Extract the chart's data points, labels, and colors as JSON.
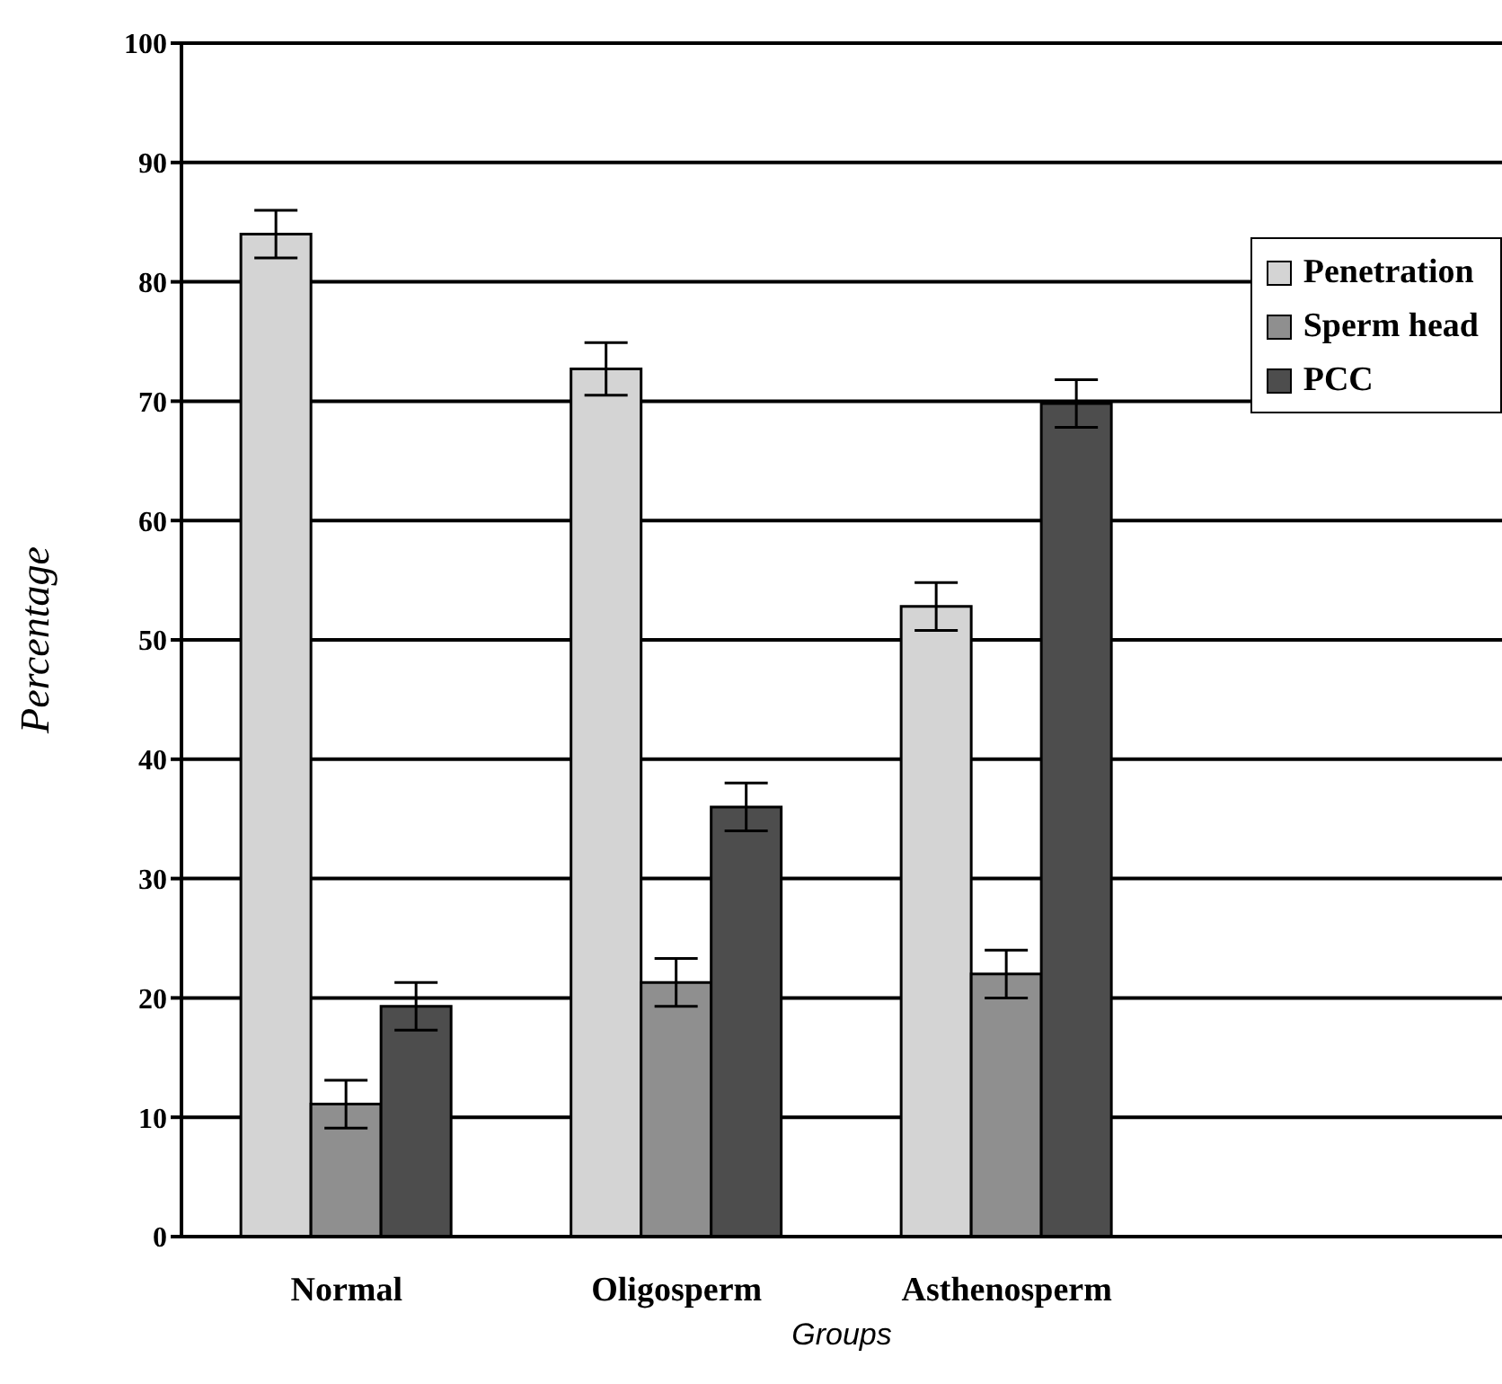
{
  "chart_data": {
    "type": "bar",
    "xlabel": "Groups",
    "ylabel": "Percentage",
    "categories": [
      "Normal",
      "Oligosperm",
      "Asthenosperm",
      null
    ],
    "series": [
      {
        "name": "Penetration",
        "color": "#d4d4d4",
        "values": [
          84,
          72.7,
          52.8,
          null
        ],
        "errors": [
          2,
          2.2,
          2,
          null
        ]
      },
      {
        "name": "Sperm head",
        "color": "#8f8f8f",
        "values": [
          11.1,
          21.3,
          22,
          null
        ],
        "errors": [
          2,
          2,
          2,
          null
        ]
      },
      {
        "name": "PCC",
        "color": "#4d4d4d",
        "values": [
          19.3,
          36,
          69.8,
          null
        ],
        "errors": [
          2,
          2,
          2,
          null
        ]
      }
    ],
    "ylim": [
      0,
      100
    ],
    "yticks": [
      0,
      10,
      20,
      30,
      40,
      50,
      60,
      70,
      80,
      90,
      100
    ],
    "grid": "y",
    "legend": "top right"
  }
}
